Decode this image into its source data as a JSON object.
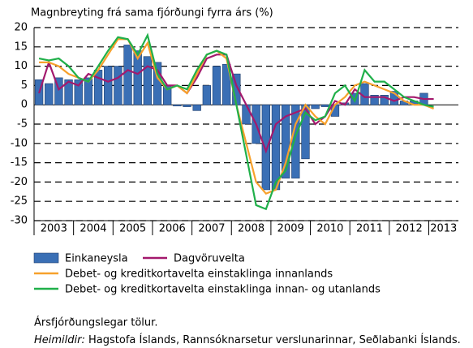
{
  "chart_data": {
    "type": "bar-line",
    "title": "Magnbreyting frá sama fjórðungi fyrra árs (%)",
    "categories": [
      "2003",
      null,
      null,
      null,
      "2004",
      null,
      null,
      null,
      "2005",
      null,
      null,
      null,
      "2006",
      null,
      null,
      null,
      "2007",
      null,
      null,
      null,
      "2008",
      null,
      null,
      null,
      "2009",
      null,
      null,
      null,
      "2010",
      null,
      null,
      null,
      "2011",
      null,
      null,
      null,
      "2012",
      null,
      null,
      null,
      "2013",
      null,
      null
    ],
    "series": [
      {
        "name": "Einkaneysla",
        "type": "bar",
        "color": "#3a6fb5",
        "values": [
          6.5,
          5.5,
          7,
          6.5,
          6.5,
          7,
          9,
          10,
          10,
          15.5,
          14,
          12.5,
          11,
          5,
          -0.3,
          -0.5,
          -1.5,
          5,
          10,
          10.5,
          8,
          -5,
          -10,
          -22,
          -22,
          -19,
          -19,
          -14,
          -1,
          -0.5,
          -3,
          0.5,
          3,
          5.5,
          2.5,
          2.5,
          3.5,
          1,
          1,
          3,
          null,
          null,
          null
        ]
      },
      {
        "name": "Dagvöruvelta",
        "type": "line",
        "color": "#a3196d",
        "values": [
          3,
          11,
          4,
          6,
          5,
          8,
          7,
          6,
          7,
          9,
          8,
          10,
          9,
          5,
          5,
          3,
          7,
          12,
          13,
          13,
          5,
          0,
          -5,
          -12,
          -5,
          -3,
          -2,
          -1,
          -5,
          -3,
          1,
          0,
          4,
          2,
          2,
          2,
          1,
          2,
          2,
          1.5,
          1.5,
          null,
          null
        ]
      },
      {
        "name": "Debet- og kreditkortavelta einstaklinga innanlands",
        "type": "line",
        "color": "#f7a12c",
        "values": [
          11,
          11,
          10,
          8,
          7,
          6,
          9,
          13,
          17,
          17,
          12,
          16,
          7,
          4,
          5,
          3,
          8,
          13,
          14,
          12,
          0,
          -10,
          -20,
          -23,
          -22,
          -15,
          -5,
          0,
          -3,
          -5,
          0,
          2,
          5,
          6,
          5,
          4,
          3,
          1,
          0,
          0,
          -1,
          null,
          null
        ]
      },
      {
        "name": "Debet- og kreditkortavelta einstaklinga innan- og utanlands",
        "type": "line",
        "color": "#20b04a",
        "values": [
          12,
          11.5,
          12,
          10,
          7,
          6,
          10,
          14,
          17.5,
          17,
          13,
          18,
          8,
          4,
          5,
          4,
          9,
          13,
          14,
          13,
          0,
          -13,
          -26,
          -27,
          -20,
          -17,
          -8,
          -2,
          -4,
          -3,
          3,
          5,
          1,
          9,
          6,
          6,
          4,
          2,
          1,
          0,
          -0.5,
          null,
          null
        ]
      }
    ],
    "ylim": [
      -30,
      20
    ],
    "yticks": [
      -30,
      -25,
      -20,
      -15,
      -10,
      -5,
      0,
      5,
      10,
      15,
      20
    ],
    "grid": true,
    "legend": "bottom",
    "note": "Ársfjórðungslegar tölur.",
    "source_label": "Heimildir:",
    "source": "Hagstofa Íslands, Rannsóknarsetur verslunarinnar, Seðlabanki Íslands."
  }
}
